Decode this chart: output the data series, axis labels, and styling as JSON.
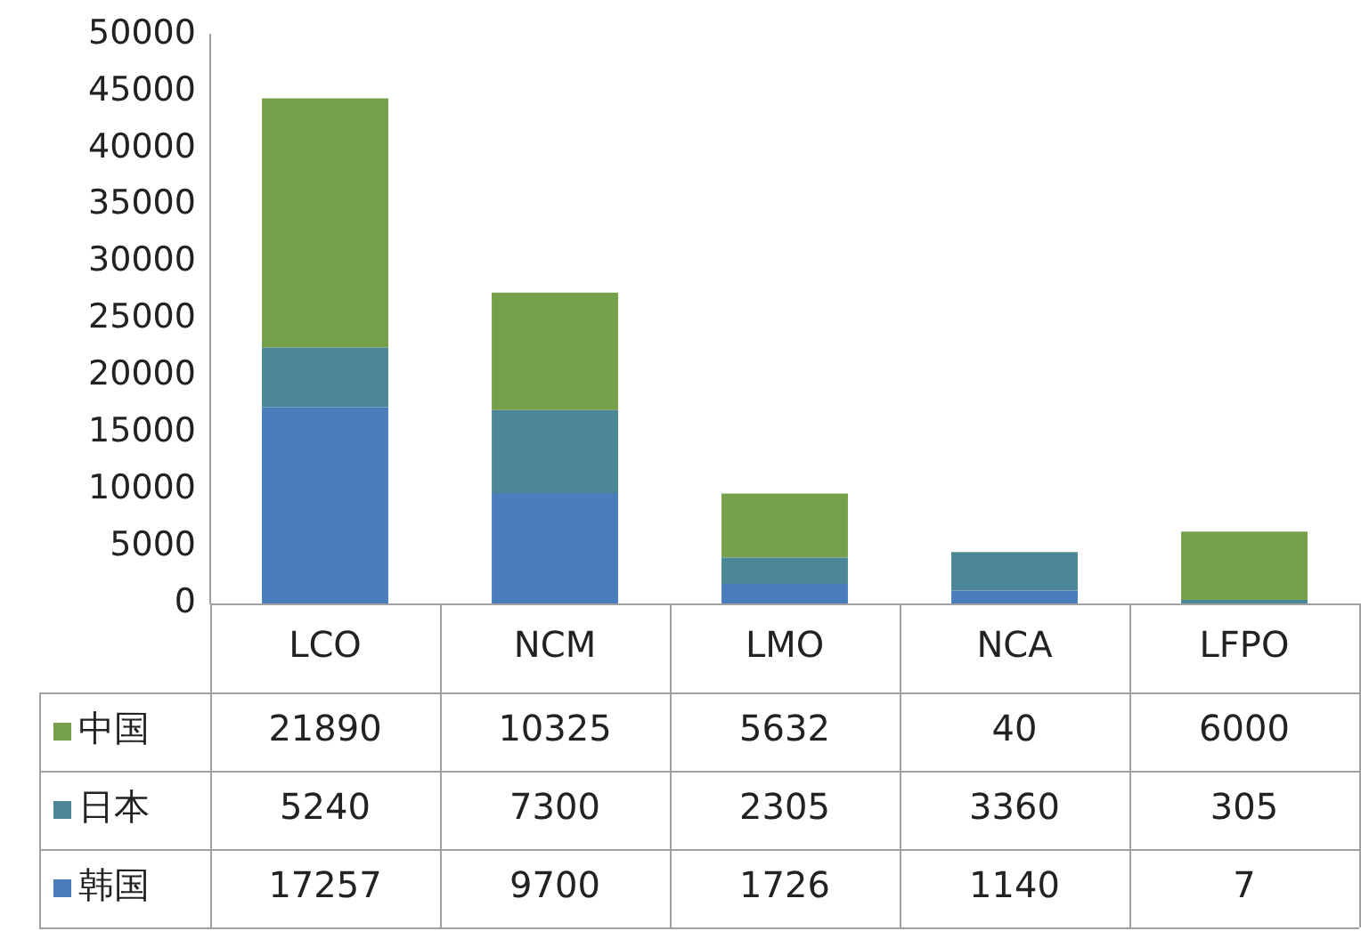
{
  "chart_data": {
    "type": "bar",
    "stacked": true,
    "categories": [
      "LCO",
      "NCM",
      "LMO",
      "NCA",
      "LFPO"
    ],
    "series": [
      {
        "name": "韩国",
        "color": "#4a7ebb",
        "values": [
          17257,
          9700,
          1726,
          1140,
          7
        ]
      },
      {
        "name": "日本",
        "color": "#4b8796",
        "values": [
          5240,
          7300,
          2305,
          3360,
          305
        ]
      },
      {
        "name": "中国",
        "color": "#77a04a",
        "values": [
          21890,
          10325,
          5632,
          40,
          6000
        ]
      }
    ],
    "ylim": [
      0,
      50000
    ],
    "yticks": [
      0,
      5000,
      10000,
      15000,
      20000,
      25000,
      30000,
      35000,
      40000,
      45000,
      50000
    ],
    "grid": false,
    "legend": "bottom",
    "data_labels": true
  }
}
